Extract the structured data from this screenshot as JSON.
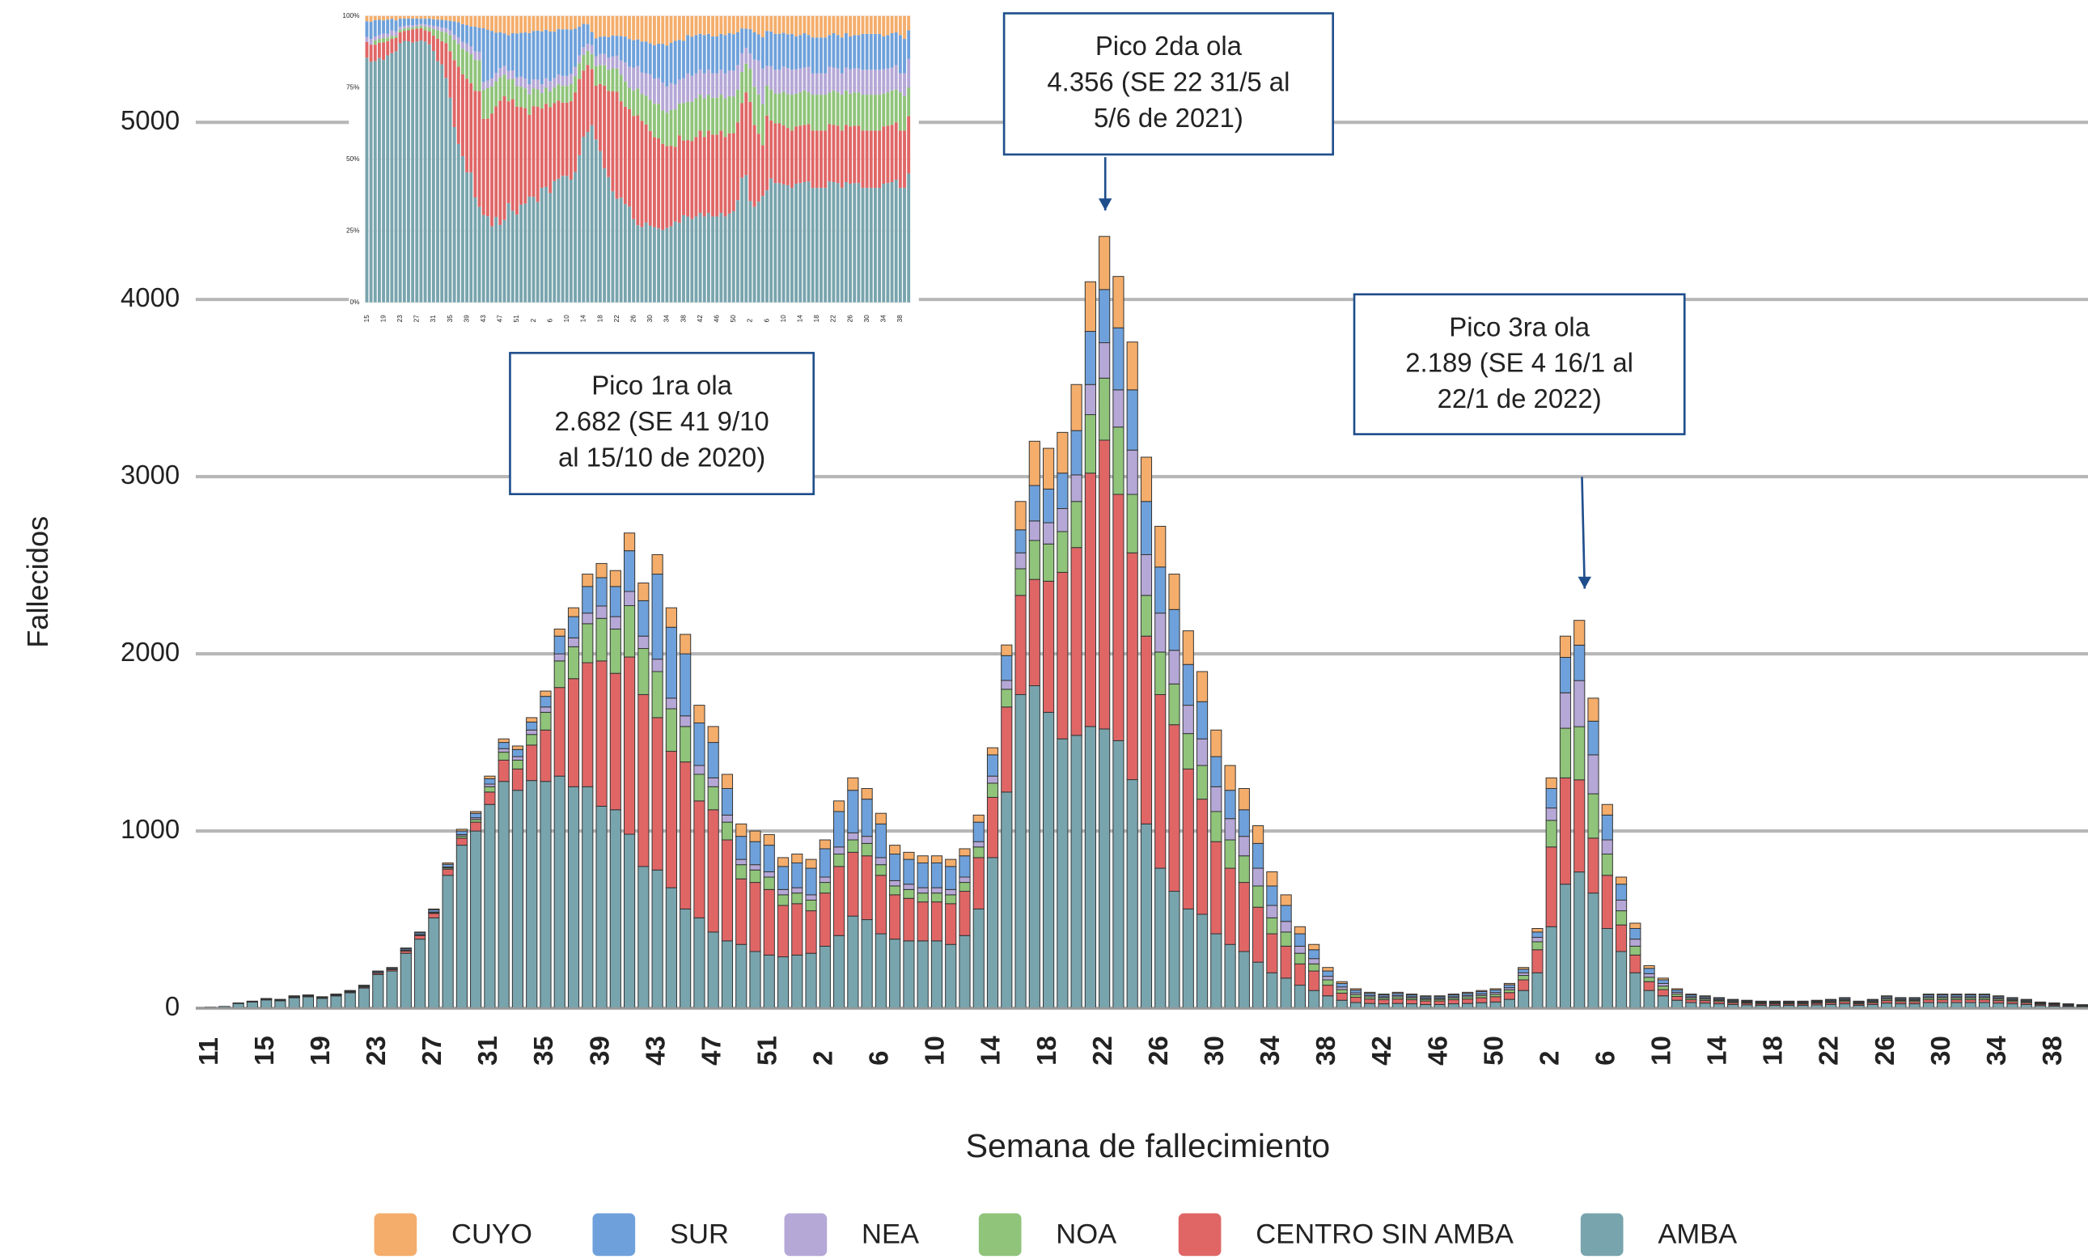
{
  "chart_data": [
    {
      "type": "stacked-bar",
      "y_label": "Fallecidos",
      "x_label": "Semana de fallecimiento",
      "ylim": [
        0,
        5600
      ],
      "yticks": [
        0,
        1000,
        2000,
        3000,
        4000,
        5000
      ],
      "grid": true,
      "legend": "bottom",
      "categories": [
        "11",
        null,
        null,
        null,
        "15",
        null,
        null,
        null,
        "19",
        null,
        null,
        null,
        "23",
        null,
        null,
        null,
        "27",
        null,
        null,
        null,
        "31",
        null,
        null,
        null,
        "35",
        null,
        null,
        null,
        "39",
        null,
        null,
        null,
        "43",
        null,
        null,
        null,
        "47",
        null,
        null,
        null,
        "51",
        null,
        null,
        null,
        "2",
        null,
        null,
        null,
        "6",
        null,
        null,
        null,
        "10",
        null,
        null,
        null,
        "14",
        null,
        null,
        null,
        "18",
        null,
        null,
        null,
        "22",
        null,
        null,
        null,
        "26",
        null,
        null,
        null,
        "30",
        null,
        null,
        null,
        "34",
        null,
        null,
        null,
        "38",
        null,
        null,
        null,
        "42",
        null,
        null,
        null,
        "46",
        null,
        null,
        null,
        "50",
        null,
        null,
        null,
        "2",
        null,
        null,
        null,
        "6",
        null,
        null,
        null,
        "10",
        null,
        null,
        null,
        "14",
        null,
        null,
        null,
        "18",
        null,
        null,
        null,
        "22",
        null,
        null,
        null,
        "26",
        null,
        null,
        null,
        "30",
        null,
        null,
        null,
        "34",
        null,
        null,
        null,
        "38",
        null,
        null
      ],
      "series": [
        {
          "name": "CUYO",
          "color": "#f4ad6b",
          "values": [
            0,
            0,
            0,
            0,
            1,
            1,
            1,
            1,
            1,
            1,
            1,
            2,
            2,
            2,
            3,
            4,
            5,
            8,
            10,
            10,
            15,
            20,
            20,
            25,
            30,
            40,
            50,
            70,
            80,
            90,
            100,
            100,
            110,
            110,
            110,
            100,
            90,
            80,
            70,
            60,
            60,
            50,
            50,
            50,
            50,
            60,
            70,
            60,
            60,
            50,
            40,
            40,
            40,
            40,
            40,
            40,
            40,
            60,
            160,
            250,
            230,
            230,
            260,
            280,
            300,
            290,
            270,
            250,
            230,
            200,
            190,
            170,
            150,
            140,
            120,
            100,
            80,
            60,
            40,
            30,
            20,
            10,
            8,
            6,
            5,
            6,
            5,
            5,
            5,
            5,
            6,
            6,
            7,
            8,
            10,
            20,
            60,
            120,
            140,
            130,
            60,
            40,
            30,
            15,
            10,
            7,
            5,
            5,
            4,
            3,
            3,
            3,
            3,
            3,
            3,
            3,
            3,
            4,
            3,
            3,
            5,
            4,
            4,
            5,
            5,
            5,
            5,
            5,
            5,
            4,
            3,
            2,
            2,
            2,
            1
          ]
        },
        {
          "name": "SUR",
          "color": "#6ea1db",
          "values": [
            0,
            0,
            1,
            2,
            3,
            3,
            4,
            4,
            3,
            4,
            4,
            5,
            6,
            6,
            8,
            10,
            12,
            15,
            20,
            25,
            30,
            35,
            40,
            45,
            60,
            100,
            120,
            150,
            160,
            170,
            230,
            200,
            480,
            400,
            350,
            240,
            200,
            150,
            130,
            130,
            150,
            130,
            140,
            150,
            160,
            200,
            240,
            210,
            190,
            150,
            140,
            140,
            140,
            130,
            120,
            110,
            120,
            140,
            130,
            200,
            190,
            200,
            250,
            300,
            300,
            350,
            340,
            300,
            260,
            230,
            230,
            210,
            170,
            160,
            150,
            140,
            110,
            90,
            70,
            50,
            30,
            20,
            15,
            12,
            10,
            12,
            10,
            9,
            9,
            10,
            12,
            13,
            14,
            16,
            20,
            30,
            110,
            200,
            200,
            190,
            140,
            90,
            60,
            30,
            20,
            13,
            10,
            8,
            7,
            6,
            5,
            5,
            5,
            5,
            5,
            5,
            6,
            7,
            5,
            6,
            8,
            7,
            7,
            10,
            10,
            10,
            10,
            10,
            8,
            7,
            6,
            4,
            4,
            3,
            2
          ]
        },
        {
          "name": "NEA",
          "color": "#b5a7d6",
          "values": [
            0,
            0,
            0,
            0,
            1,
            1,
            1,
            1,
            1,
            1,
            2,
            2,
            2,
            2,
            3,
            3,
            4,
            5,
            8,
            10,
            15,
            20,
            20,
            25,
            30,
            40,
            50,
            60,
            70,
            70,
            80,
            70,
            70,
            60,
            60,
            50,
            50,
            40,
            30,
            30,
            30,
            30,
            30,
            30,
            30,
            40,
            40,
            40,
            40,
            30,
            30,
            30,
            30,
            30,
            30,
            30,
            40,
            50,
            90,
            110,
            120,
            130,
            150,
            170,
            200,
            210,
            250,
            230,
            220,
            190,
            160,
            150,
            140,
            120,
            110,
            100,
            70,
            60,
            40,
            30,
            20,
            15,
            10,
            8,
            7,
            8,
            7,
            6,
            6,
            7,
            8,
            9,
            10,
            12,
            15,
            25,
            70,
            200,
            260,
            220,
            80,
            60,
            40,
            20,
            15,
            10,
            7,
            6,
            5,
            4,
            4,
            3,
            3,
            3,
            3,
            4,
            4,
            5,
            3,
            4,
            6,
            5,
            5,
            7,
            7,
            7,
            7,
            7,
            6,
            5,
            4,
            3,
            2,
            2,
            2
          ]
        },
        {
          "name": "NOA",
          "color": "#8fc47a",
          "values": [
            0,
            0,
            0,
            0,
            0,
            0,
            1,
            1,
            1,
            1,
            1,
            1,
            2,
            2,
            3,
            3,
            4,
            7,
            12,
            15,
            30,
            45,
            50,
            60,
            100,
            150,
            180,
            220,
            240,
            250,
            290,
            260,
            260,
            240,
            200,
            150,
            130,
            100,
            80,
            70,
            70,
            60,
            60,
            60,
            60,
            70,
            70,
            70,
            60,
            50,
            50,
            50,
            50,
            50,
            50,
            60,
            80,
            100,
            150,
            220,
            210,
            230,
            260,
            330,
            350,
            380,
            330,
            230,
            240,
            230,
            200,
            190,
            170,
            160,
            150,
            120,
            90,
            80,
            60,
            40,
            30,
            20,
            15,
            12,
            10,
            12,
            10,
            9,
            9,
            10,
            12,
            13,
            14,
            16,
            25,
            45,
            150,
            280,
            300,
            250,
            120,
            80,
            50,
            25,
            20,
            13,
            10,
            8,
            7,
            6,
            5,
            5,
            5,
            5,
            5,
            5,
            6,
            7,
            5,
            6,
            8,
            7,
            7,
            10,
            10,
            10,
            10,
            10,
            8,
            7,
            6,
            4,
            4,
            3,
            2
          ]
        },
        {
          "name": "CENTRO SIN AMBA",
          "color": "#e06666",
          "values": [
            0,
            0,
            2,
            3,
            3,
            3,
            4,
            4,
            4,
            4,
            5,
            6,
            8,
            8,
            13,
            20,
            25,
            35,
            40,
            50,
            70,
            120,
            120,
            200,
            290,
            500,
            610,
            700,
            820,
            770,
            1000,
            970,
            860,
            770,
            830,
            660,
            690,
            570,
            370,
            390,
            370,
            290,
            290,
            240,
            300,
            390,
            360,
            360,
            330,
            250,
            240,
            220,
            220,
            230,
            250,
            290,
            340,
            480,
            560,
            600,
            740,
            940,
            1060,
            1430,
            1630,
            1390,
            1280,
            1060,
            980,
            940,
            790,
            650,
            520,
            430,
            390,
            310,
            220,
            180,
            120,
            110,
            60,
            40,
            30,
            25,
            23,
            25,
            23,
            20,
            20,
            23,
            25,
            28,
            30,
            38,
            60,
            130,
            450,
            600,
            520,
            310,
            300,
            150,
            100,
            50,
            35,
            22,
            16,
            14,
            12,
            10,
            9,
            8,
            8,
            8,
            8,
            9,
            10,
            12,
            8,
            10,
            14,
            12,
            12,
            16,
            16,
            16,
            16,
            16,
            14,
            12,
            10,
            7,
            6,
            5,
            4
          ]
        },
        {
          "name": "AMBA",
          "color": "#78a4ad",
          "values": [
            5,
            10,
            27,
            35,
            47,
            42,
            59,
            64,
            55,
            69,
            87,
            114,
            190,
            210,
            310,
            390,
            510,
            750,
            920,
            1000,
            1150,
            1280,
            1230,
            1285,
            1280,
            1310,
            1250,
            1250,
            1140,
            1120,
            982,
            800,
            780,
            680,
            560,
            510,
            430,
            380,
            360,
            320,
            300,
            290,
            300,
            310,
            350,
            410,
            520,
            500,
            420,
            390,
            380,
            380,
            380,
            360,
            410,
            560,
            850,
            1220,
            1770,
            1820,
            1670,
            1520,
            1540,
            1590,
            1576,
            1510,
            1290,
            1040,
            790,
            660,
            560,
            530,
            420,
            360,
            320,
            260,
            200,
            170,
            130,
            100,
            70,
            45,
            32,
            27,
            25,
            27,
            25,
            21,
            21,
            25,
            27,
            31,
            35,
            50,
            100,
            200,
            460,
            700,
            769,
            650,
            450,
            320,
            200,
            100,
            70,
            45,
            32,
            29,
            25,
            21,
            19,
            16,
            16,
            16,
            16,
            19,
            21,
            25,
            16,
            21,
            29,
            25,
            25,
            32,
            32,
            32,
            32,
            32,
            29,
            25,
            21,
            15,
            12,
            10,
            9
          ]
        }
      ],
      "annotations": [
        {
          "lines": [
            "Pico 1ra ola",
            "2.682 (SE 41  9/10",
            "al 15/10 de 2020)"
          ]
        },
        {
          "lines": [
            "Pico 2da ola",
            "4.356 (SE 22  31/5 al",
            "5/6 de 2021)"
          ]
        },
        {
          "lines": [
            "Pico 3ra ola",
            "2.189 (SE 4  16/1 al",
            "22/1 de 2022)"
          ]
        }
      ]
    },
    {
      "type": "stacked-percent",
      "ylim": [
        0,
        100
      ],
      "yticks": [
        {
          "value": 0,
          "label": "0%"
        },
        {
          "value": 25,
          "label": "25%"
        },
        {
          "value": 50,
          "label": "50%"
        },
        {
          "value": 75,
          "label": "75%"
        },
        {
          "value": 100,
          "label": "100%"
        }
      ],
      "categories": [
        "15",
        "19",
        "23",
        "27",
        "31",
        "35",
        "39",
        "43",
        "47",
        "51",
        "2",
        "6",
        "10",
        "14",
        "18",
        "22",
        "26",
        "30",
        "34",
        "38",
        "42",
        "46",
        "50",
        "2",
        "6",
        "10",
        "14",
        "18",
        "22",
        "26",
        "30",
        "34",
        "38"
      ]
    }
  ]
}
